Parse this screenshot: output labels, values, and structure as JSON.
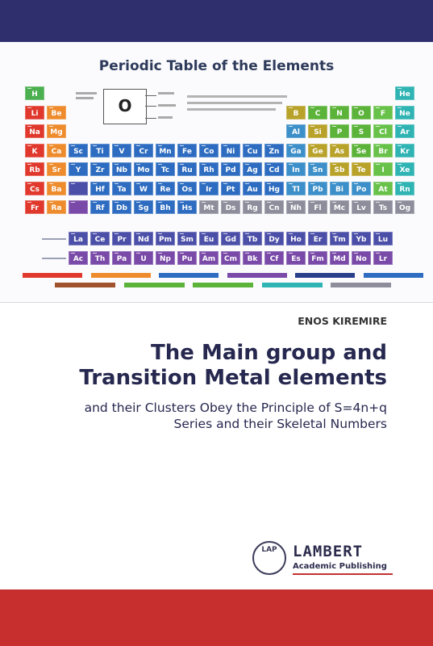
{
  "cover": {
    "author": "ENOS KIREMIRE",
    "title_line1": "The Main group and",
    "title_line2": "Transition Metal elements",
    "subtitle_line1": "and their Clusters Obey the Principle of S=4n+q",
    "subtitle_line2": "Series and their Skeletal Numbers",
    "band_top_color": "#2f2f6e",
    "band_bottom_color": "#c72f2f"
  },
  "periodic_table": {
    "title": "Periodic Table of the Elements",
    "key_symbol": "O",
    "key_number": "8",
    "main_rows": [
      [
        "H",
        "",
        "",
        "",
        "",
        "",
        "",
        "",
        "",
        "",
        "",
        "",
        "",
        "",
        "",
        "",
        "",
        "He"
      ],
      [
        "Li",
        "Be",
        "",
        "",
        "",
        "",
        "",
        "",
        "",
        "",
        "",
        "",
        "B",
        "C",
        "N",
        "O",
        "F",
        "Ne"
      ],
      [
        "Na",
        "Mg",
        "",
        "",
        "",
        "",
        "",
        "",
        "",
        "",
        "",
        "",
        "Al",
        "Si",
        "P",
        "S",
        "Cl",
        "Ar"
      ],
      [
        "K",
        "Ca",
        "Sc",
        "Ti",
        "V",
        "Cr",
        "Mn",
        "Fe",
        "Co",
        "Ni",
        "Cu",
        "Zn",
        "Ga",
        "Ge",
        "As",
        "Se",
        "Br",
        "Kr"
      ],
      [
        "Rb",
        "Sr",
        "Y",
        "Zr",
        "Nb",
        "Mo",
        "Tc",
        "Ru",
        "Rh",
        "Pd",
        "Ag",
        "Cd",
        "In",
        "Sn",
        "Sb",
        "Te",
        "I",
        "Xe"
      ],
      [
        "Cs",
        "Ba",
        "",
        "Hf",
        "Ta",
        "W",
        "Re",
        "Os",
        "Ir",
        "Pt",
        "Au",
        "Hg",
        "Tl",
        "Pb",
        "Bi",
        "Po",
        "At",
        "Rn"
      ],
      [
        "Fr",
        "Ra",
        "",
        "Rf",
        "Db",
        "Sg",
        "Bh",
        "Hs",
        "Mt",
        "Ds",
        "Rg",
        "Cn",
        "Nh",
        "Fl",
        "Mc",
        "Lv",
        "Ts",
        "Og"
      ]
    ],
    "lanthanides": [
      "La",
      "Ce",
      "Pr",
      "Nd",
      "Pm",
      "Sm",
      "Eu",
      "Gd",
      "Tb",
      "Dy",
      "Ho",
      "Er",
      "Tm",
      "Yb",
      "Lu"
    ],
    "actinides": [
      "Ac",
      "Th",
      "Pa",
      "U",
      "Np",
      "Pu",
      "Am",
      "Cm",
      "Bk",
      "Cf",
      "Es",
      "Fm",
      "Md",
      "No",
      "Lr"
    ],
    "category_colors": {
      "alkali": "#e0382c",
      "alkaline": "#ee8b2c",
      "transition": "#2d6cc0",
      "post_transition": "#3c8fc8",
      "metalloid": "#b8a22a",
      "nonmetal": "#5bb33a",
      "halogen": "#68c24a",
      "noble": "#2fb3b3",
      "lanthanide": "#4b4fa8",
      "actinide": "#7a4aa8",
      "unknown": "#8d8d9b",
      "hydrogen": "#4caf50"
    },
    "legend_colors": [
      "#e0382c",
      "#ee8b2c",
      "#2d6cc0",
      "#7a4aa8",
      "#2a3f8c",
      "#2d6cc0",
      "#a0522d",
      "#5bb33a",
      "#5bb33a",
      "#2fb3b3",
      "#8d8d9b"
    ]
  },
  "publisher": {
    "seal_text": "LAP",
    "name": "LAMBERT",
    "subname": "Academic Publishing"
  }
}
